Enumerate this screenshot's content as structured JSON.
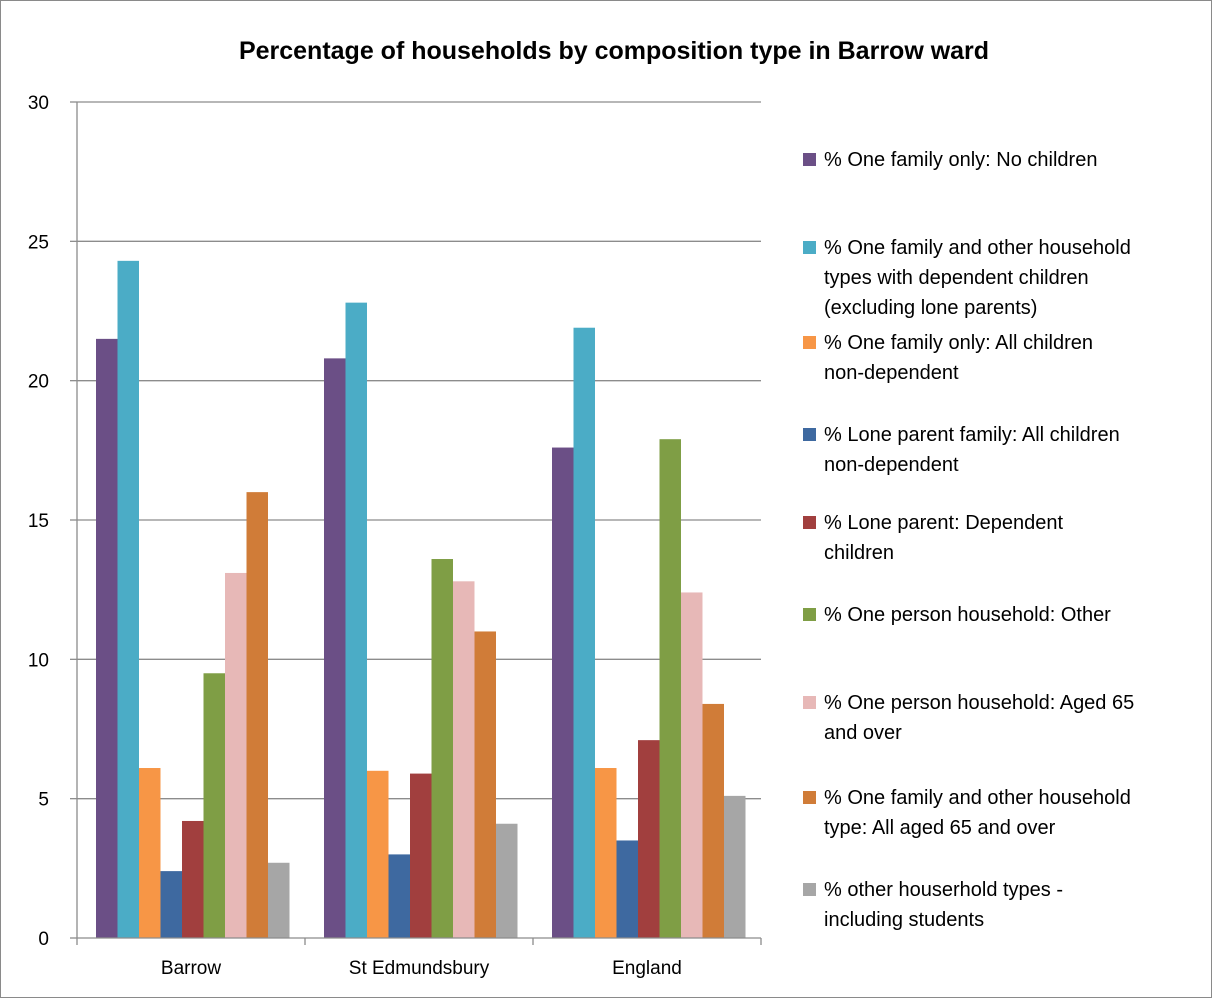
{
  "chart_data": {
    "type": "bar",
    "title": "Percentage of households by composition type in Barrow ward",
    "xlabel": "",
    "ylabel": "",
    "ylim": [
      0,
      30
    ],
    "yticks": [
      0,
      5,
      10,
      15,
      20,
      25,
      30
    ],
    "grid": true,
    "legend_position": "right",
    "categories": [
      "Barrow",
      "St Edmundsbury",
      "England"
    ],
    "series": [
      {
        "name": "% One family only: No children",
        "color": "#6b4f86",
        "values": [
          21.5,
          20.8,
          17.6
        ]
      },
      {
        "name": "% One family and other household types with dependent children (excluding lone parents)",
        "color": "#4bacc6",
        "values": [
          24.3,
          22.8,
          21.9
        ]
      },
      {
        "name": "% One family only: All children non-dependent",
        "color": "#f79646",
        "values": [
          6.1,
          6.0,
          6.1
        ]
      },
      {
        "name": "% Lone parent family: All children non-dependent",
        "color": "#3e69a0",
        "values": [
          2.4,
          3.0,
          3.5
        ]
      },
      {
        "name": "%  Lone parent: Dependent children",
        "color": "#a13f3e",
        "values": [
          4.2,
          5.9,
          7.1
        ]
      },
      {
        "name": "% One person household: Other",
        "color": "#7f9e45",
        "values": [
          9.5,
          13.6,
          17.9
        ]
      },
      {
        "name": "% One person household: Aged 65 and over",
        "color": "#e7b8b7",
        "values": [
          13.1,
          12.8,
          12.4
        ]
      },
      {
        "name": "% One family and other household type: All aged 65 and over",
        "color": "#d07c38",
        "values": [
          16.0,
          11.0,
          8.4
        ]
      },
      {
        "name": "% other houserhold types - including students",
        "color": "#a6a6a6",
        "values": [
          2.7,
          4.1,
          5.1
        ]
      }
    ],
    "legend_lines": [
      [
        "% One family only: No children"
      ],
      [
        "% One family and other household",
        "types with dependent children",
        "(excluding lone parents)"
      ],
      [
        "% One family only: All children",
        "non-dependent"
      ],
      [
        "% Lone parent family: All children",
        "non-dependent"
      ],
      [
        "%  Lone parent: Dependent",
        "children"
      ],
      [
        "% One person household: Other"
      ],
      [
        "% One person household: Aged 65",
        "and over"
      ],
      [
        "% One family and other household",
        "type: All aged 65 and over"
      ],
      [
        "% other houserhold types -",
        "including students"
      ]
    ]
  }
}
